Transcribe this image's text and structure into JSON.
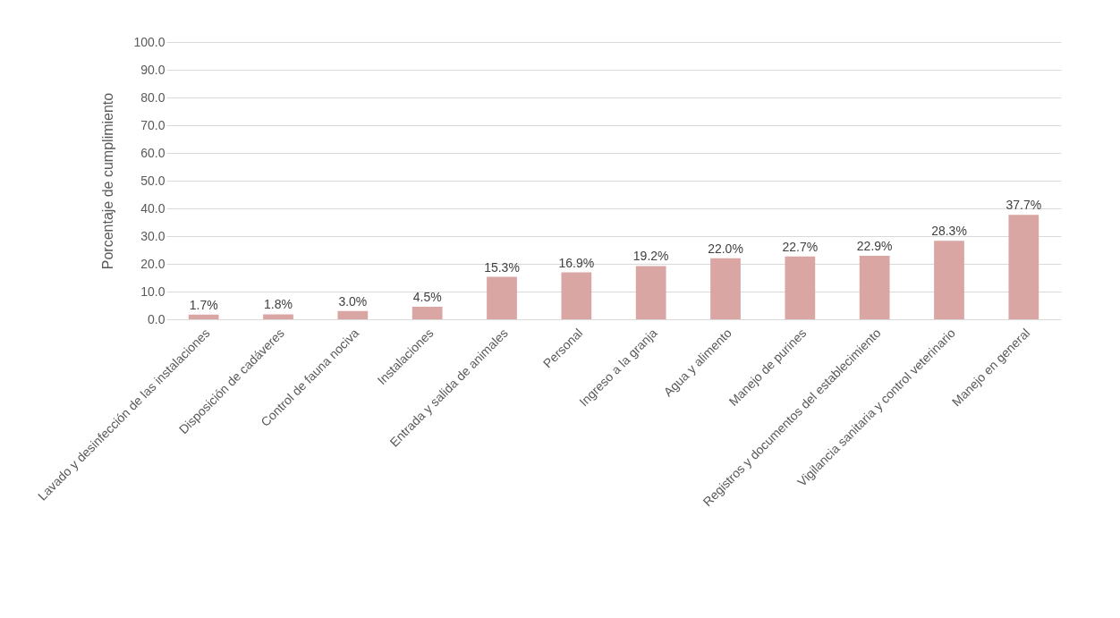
{
  "chart_data": {
    "type": "bar",
    "ylabel": "Porcentaje de cumplimiento",
    "categories": [
      "Lavado y desinfección de las instalaciones",
      "Disposición de cadáveres",
      "Control de fauna nociva",
      "Instalaciones",
      "Entrada y salida de animales",
      "Personal",
      "Ingreso a la granja",
      "Agua y alimento",
      "Manejo de purines",
      "Registros y documentos del establecimiento",
      "Vigilancia sanitaria y control veterinario",
      "Manejo en general"
    ],
    "values": [
      1.7,
      1.8,
      3.0,
      4.5,
      15.3,
      16.9,
      19.2,
      22.0,
      22.7,
      22.9,
      28.3,
      37.7
    ],
    "value_labels": [
      "1.7%",
      "1.8%",
      "3.0%",
      "4.5%",
      "15.3%",
      "16.9%",
      "19.2%",
      "22.0%",
      "22.7%",
      "22.9%",
      "28.3%",
      "37.7%"
    ],
    "color": "#d9a6a4",
    "ylim": [
      0,
      100
    ],
    "yticks": [
      {
        "value": 0,
        "label": "0.0"
      },
      {
        "value": 10,
        "label": "10.0"
      },
      {
        "value": 20,
        "label": "20.0"
      },
      {
        "value": 30,
        "label": "30.0"
      },
      {
        "value": 40,
        "label": "40.0"
      },
      {
        "value": 50,
        "label": "50.0"
      },
      {
        "value": 60,
        "label": "60.0"
      },
      {
        "value": 70,
        "label": "70.0"
      },
      {
        "value": 80,
        "label": "80.0"
      },
      {
        "value": 90,
        "label": "90.0"
      },
      {
        "value": 100,
        "label": "100.0"
      }
    ],
    "grid": "y"
  }
}
